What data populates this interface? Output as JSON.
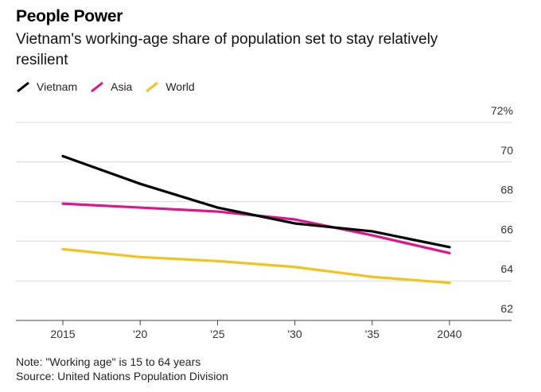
{
  "title": "People Power",
  "subtitle": "Vietnam's working-age share of population set to stay relatively resilient",
  "legend": [
    {
      "name": "Vietnam",
      "color": "#000000"
    },
    {
      "name": "Asia",
      "color": "#e0148b"
    },
    {
      "name": "World",
      "color": "#f2c31d"
    }
  ],
  "footer": {
    "note": "Note: \"Working age\" is 15 to 64 years",
    "source": "Source: United Nations Population Division"
  },
  "chart_data": {
    "type": "line",
    "title": "People Power",
    "xlabel": "",
    "ylabel": "",
    "x": [
      2015,
      2020,
      2025,
      2030,
      2035,
      2040
    ],
    "x_tick_labels": [
      "2015",
      "'20",
      "'25",
      "'30",
      "'35",
      "2040"
    ],
    "ylim": [
      62,
      72
    ],
    "y_ticks": [
      62,
      64,
      66,
      68,
      70,
      72
    ],
    "y_tick_labels": [
      "62",
      "64",
      "66",
      "68",
      "70",
      "72%"
    ],
    "grid": true,
    "series": [
      {
        "name": "Vietnam",
        "color": "#000000",
        "values": [
          70.3,
          68.9,
          67.7,
          66.9,
          66.5,
          65.7
        ]
      },
      {
        "name": "Asia",
        "color": "#e0148b",
        "values": [
          67.9,
          67.7,
          67.5,
          67.1,
          66.3,
          65.4
        ]
      },
      {
        "name": "World",
        "color": "#f2c31d",
        "values": [
          65.6,
          65.2,
          65.0,
          64.7,
          64.2,
          63.9
        ]
      }
    ]
  }
}
